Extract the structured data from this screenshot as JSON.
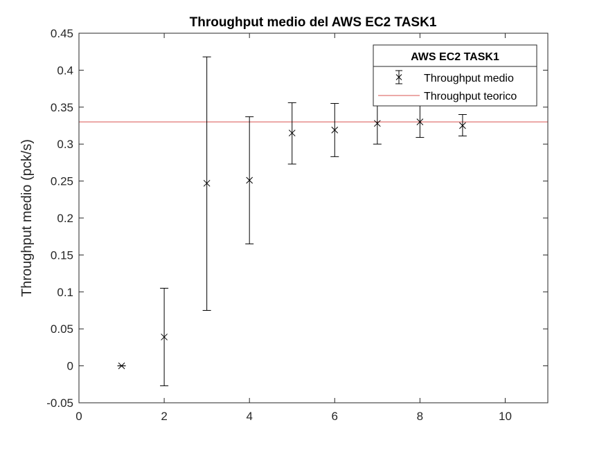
{
  "chart_data": {
    "type": "scatter",
    "title": "Throughput medio del AWS EC2 TASK1",
    "xlabel": "",
    "ylabel": "Throughput medio (pck/s)",
    "xlim": [
      0,
      11
    ],
    "ylim": [
      -0.05,
      0.45
    ],
    "xticks": [
      0,
      2,
      4,
      6,
      8,
      10
    ],
    "yticks": [
      -0.05,
      0,
      0.05,
      0.1,
      0.15,
      0.2,
      0.25,
      0.3,
      0.35,
      0.4,
      0.45
    ],
    "xtick_labels": [
      "0",
      "2",
      "4",
      "6",
      "8",
      "10"
    ],
    "ytick_labels": [
      "-0.05",
      "0",
      "0.05",
      "0.1",
      "0.15",
      "0.2",
      "0.25",
      "0.3",
      "0.35",
      "0.4",
      "0.45"
    ],
    "grid": false,
    "series": [
      {
        "name": "Throughput medio",
        "kind": "errorbar",
        "marker": "x",
        "color": "#000000",
        "x": [
          1,
          2,
          3,
          4,
          5,
          6,
          7,
          8,
          9
        ],
        "y": [
          0.0,
          0.039,
          0.247,
          0.251,
          0.315,
          0.319,
          0.328,
          0.33,
          0.325
        ],
        "lower": [
          0.0,
          -0.027,
          0.075,
          0.165,
          0.273,
          0.283,
          0.3,
          0.309,
          0.311
        ],
        "upper": [
          0.0,
          0.105,
          0.418,
          0.337,
          0.356,
          0.355,
          0.355,
          0.352,
          0.34
        ]
      },
      {
        "name": "Throughput teorico",
        "kind": "hline",
        "color": "#d9534f",
        "y": 0.33
      }
    ],
    "legend": {
      "title": "AWS EC2 TASK1",
      "placement": "top-right"
    }
  }
}
